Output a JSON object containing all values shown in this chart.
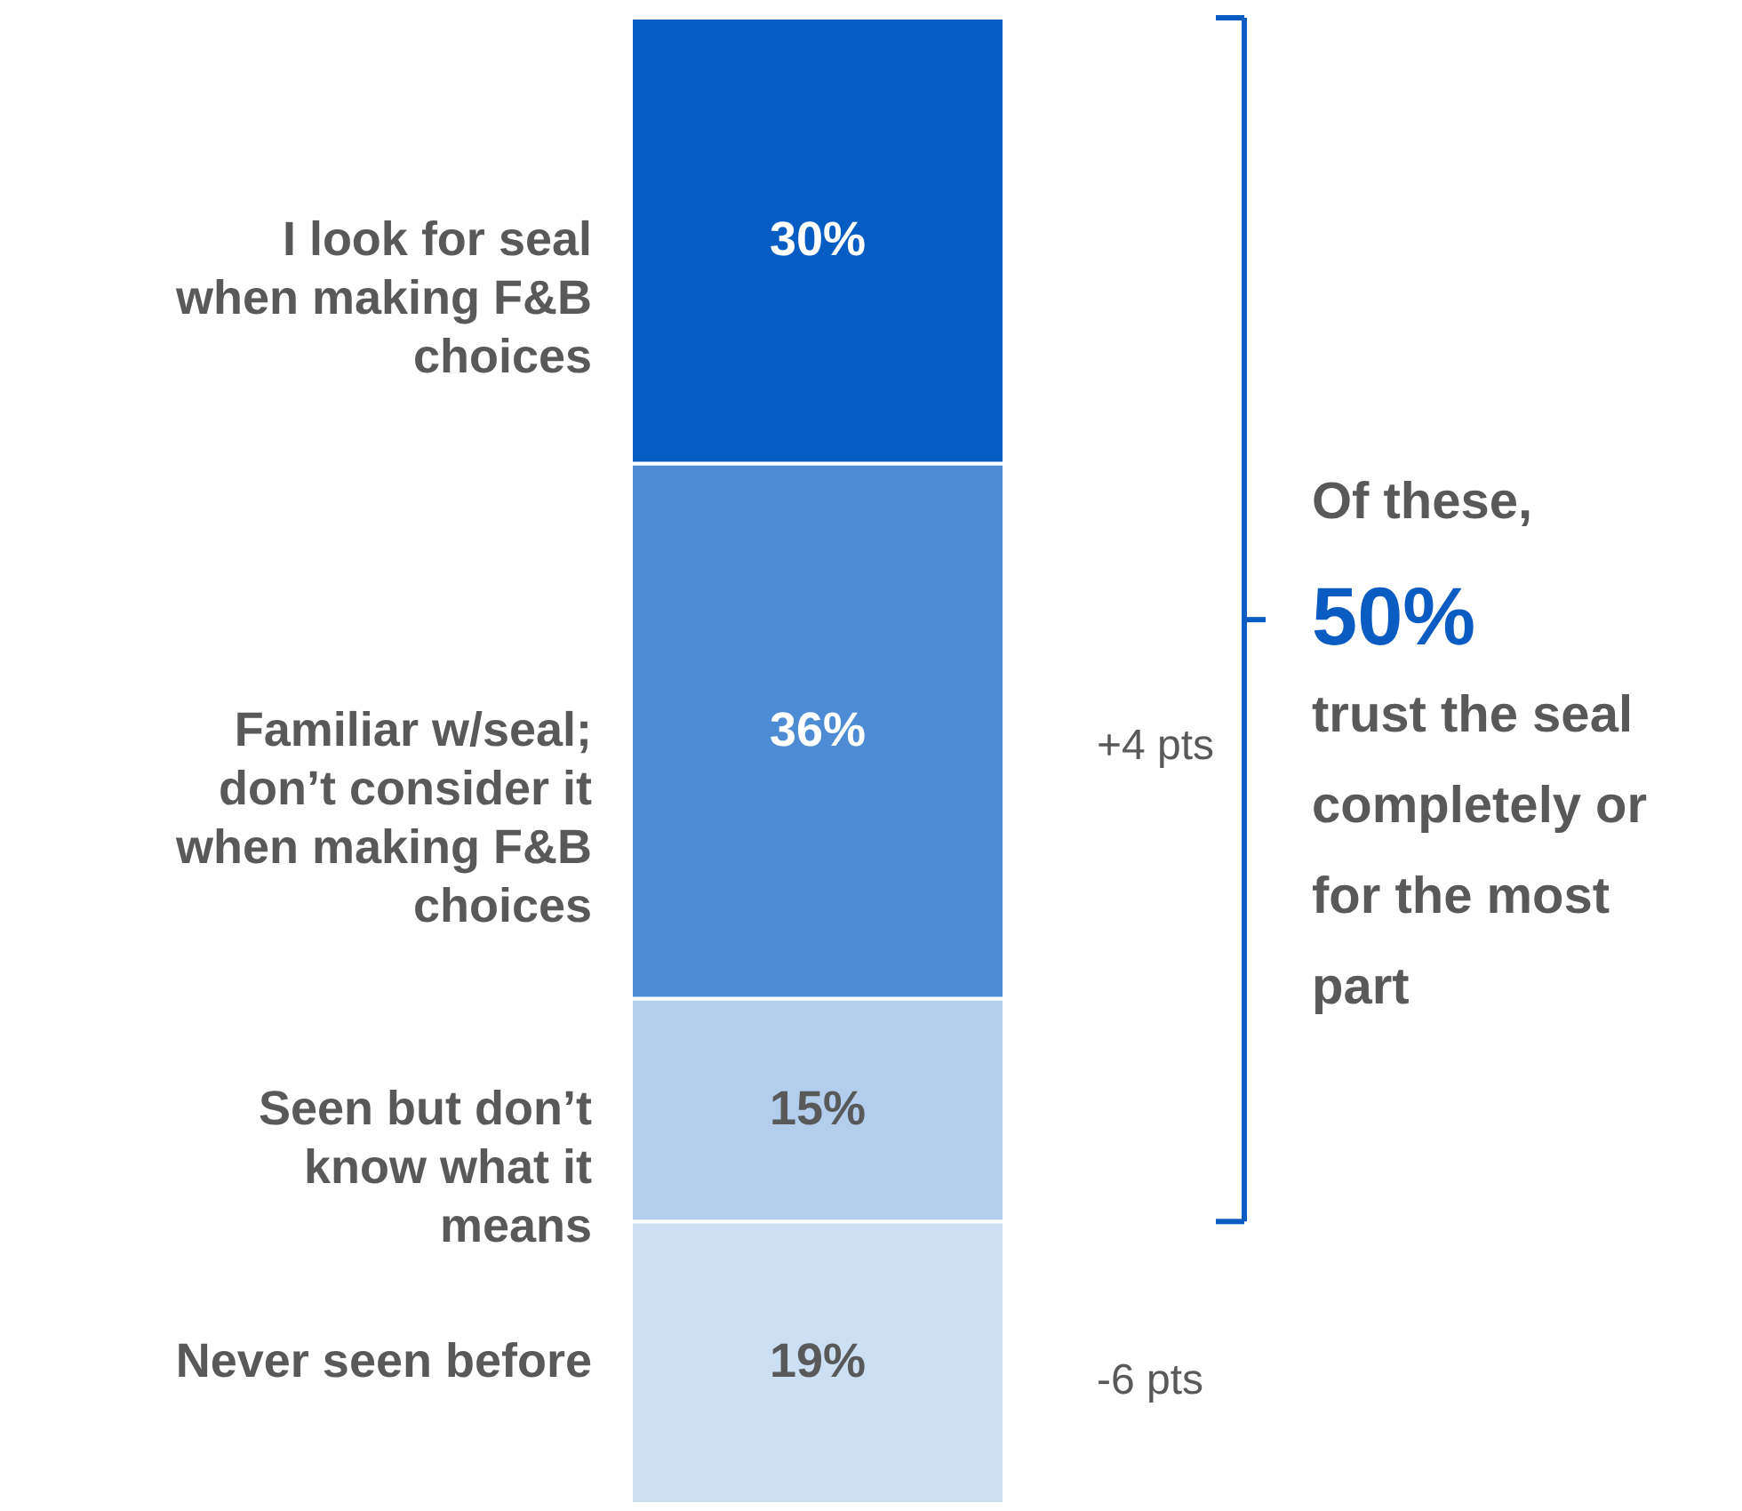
{
  "chart_data": {
    "type": "bar",
    "stacked": true,
    "categories": [
      null
    ],
    "ylim": [
      0,
      100
    ],
    "tick_labels": false,
    "series": [
      {
        "name": "Never seen before",
        "color": "#cddff2",
        "values": [
          19
        ],
        "value_labels": [
          "19%"
        ]
      },
      {
        "name": "Seen but don’t know what it means",
        "color": "#b3cdec",
        "values": [
          15
        ],
        "value_labels": [
          "15%"
        ]
      },
      {
        "name": "Familiar w/seal; don’t consider it when making F&B choices",
        "color": "#4d8cd4",
        "values": [
          36
        ],
        "value_labels": [
          "36%"
        ]
      },
      {
        "name": "I look for seal when making F&B choices",
        "color": "#055dc3",
        "values": [
          30
        ],
        "value_labels": [
          "30%"
        ]
      }
    ],
    "annotations": [
      "+4 pts",
      "-6 pts",
      "Of these,",
      "50%",
      "trust the seal completely or for the most part"
    ]
  }
}
